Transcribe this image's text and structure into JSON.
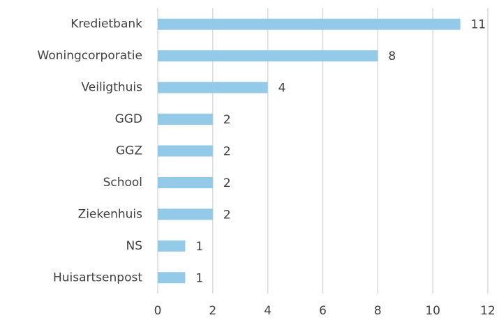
{
  "chart_data": {
    "type": "bar",
    "orientation": "horizontal",
    "categories": [
      "Kredietbank",
      "Woningcorporatie",
      "Veiligthuis",
      "GGD",
      "GGZ",
      "School",
      "Ziekenhuis",
      "NS",
      "Huisartsenpost"
    ],
    "values": [
      11,
      8,
      4,
      2,
      2,
      2,
      2,
      1,
      1
    ],
    "color": "#93cae8",
    "xlim": [
      0,
      12
    ],
    "xticks": [
      0,
      2,
      4,
      6,
      8,
      10,
      12
    ],
    "grid": true,
    "data_labels": true
  }
}
